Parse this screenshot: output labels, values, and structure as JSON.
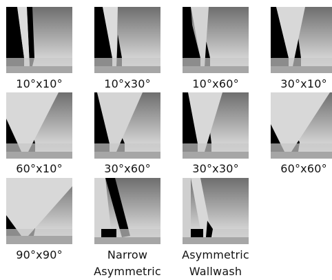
{
  "beam_patterns": [
    {
      "label": "10°x10°",
      "type": "symmetric"
    },
    {
      "label": "10°x30°",
      "type": "symmetric"
    },
    {
      "label": "10°x60°",
      "type": "symmetric"
    },
    {
      "label": "30°x10°",
      "type": "symmetric"
    },
    {
      "label": "60°x10°",
      "type": "symmetric"
    },
    {
      "label": "30°x60°",
      "type": "symmetric"
    },
    {
      "label": "30°x30°",
      "type": "symmetric"
    },
    {
      "label": "60°x60°",
      "type": "symmetric"
    },
    {
      "label": "90°x90°",
      "type": "symmetric"
    },
    {
      "label": "Narrow",
      "label_line2": "Asymmetric",
      "type": "asymmetric"
    },
    {
      "label": "Asymmetric",
      "label_line2": "Wallwash",
      "type": "wallwash"
    }
  ],
  "colors": {
    "dark": "#000000",
    "gradient_top": "#6e6e6e",
    "gradient_bottom": "#f0f0f0",
    "beam": "#d8d8d8",
    "floor_light": "#d0d0d0",
    "floor_strip": "#a6a6a6"
  }
}
